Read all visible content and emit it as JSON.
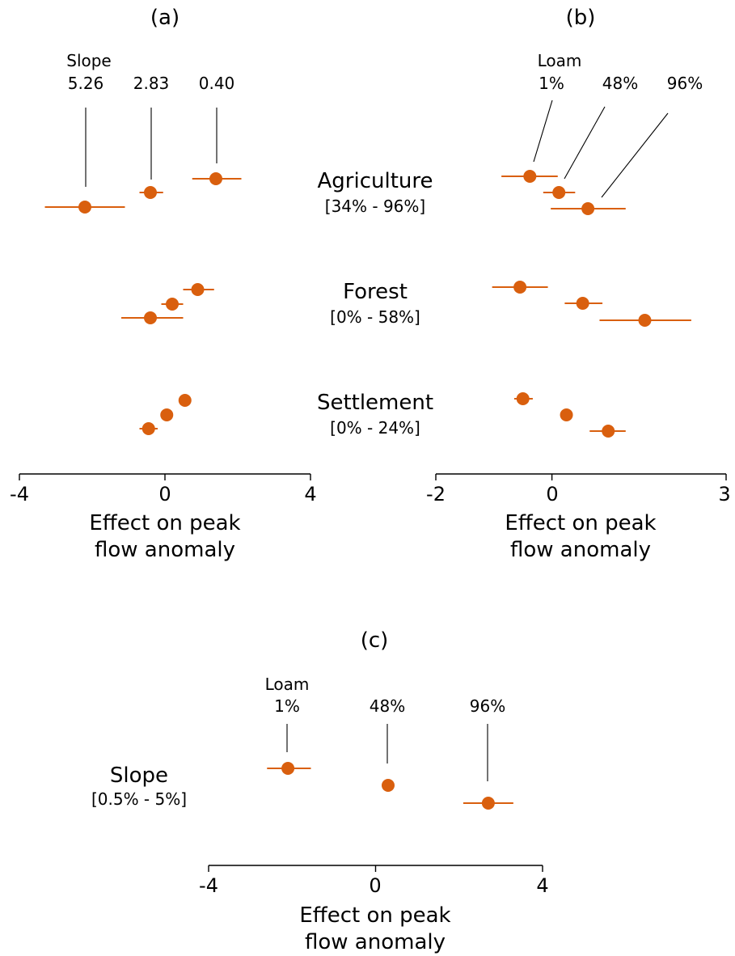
{
  "colors": {
    "marker": "#d95f0e",
    "axis": "#000000"
  },
  "categories": [
    {
      "name": "Agriculture",
      "range": "[34% - 96%]"
    },
    {
      "name": "Forest",
      "range": "[0% - 58%]"
    },
    {
      "name": "Settlement",
      "range": "[0% - 24%]"
    }
  ],
  "chart_data": [
    {
      "type": "scatter",
      "panel": "(a)",
      "xlabel": [
        "Effect on peak",
        "flow anomaly"
      ],
      "xlim": [
        -4,
        4
      ],
      "xticks": [
        "-4",
        "0",
        "4"
      ],
      "legend_title": "Slope",
      "levels": [
        "5.26",
        "2.83",
        "0.40"
      ],
      "series": [
        {
          "name": "5.26",
          "points": [
            {
              "category": "Agriculture",
              "x": -2.2,
              "lo": -3.3,
              "hi": -1.1
            },
            {
              "category": "Forest",
              "x": -0.4,
              "lo": -1.2,
              "hi": 0.5
            },
            {
              "category": "Settlement",
              "x": -0.45,
              "lo": -0.7,
              "hi": -0.2
            }
          ]
        },
        {
          "name": "2.83",
          "points": [
            {
              "category": "Agriculture",
              "x": -0.4,
              "lo": -0.7,
              "hi": -0.05
            },
            {
              "category": "Forest",
              "x": 0.2,
              "lo": -0.1,
              "hi": 0.5
            },
            {
              "category": "Settlement",
              "x": 0.05,
              "lo": -0.05,
              "hi": 0.15
            }
          ]
        },
        {
          "name": "0.40",
          "points": [
            {
              "category": "Agriculture",
              "x": 1.4,
              "lo": 0.75,
              "hi": 2.1
            },
            {
              "category": "Forest",
              "x": 0.9,
              "lo": 0.5,
              "hi": 1.35
            },
            {
              "category": "Settlement",
              "x": 0.55,
              "lo": 0.45,
              "hi": 0.65
            }
          ]
        }
      ]
    },
    {
      "type": "scatter",
      "panel": "(b)",
      "xlabel": [
        "Effect on peak",
        "flow anomaly"
      ],
      "xlim": [
        -2,
        3
      ],
      "xticks": [
        "-2",
        "0",
        "3"
      ],
      "legend_title": "Loam",
      "levels": [
        "1%",
        "48%",
        "96%"
      ],
      "series": [
        {
          "name": "1%",
          "points": [
            {
              "category": "Agriculture",
              "x": -0.38,
              "lo": -0.87,
              "hi": 0.1
            },
            {
              "category": "Forest",
              "x": -0.55,
              "lo": -1.03,
              "hi": -0.07
            },
            {
              "category": "Settlement",
              "x": -0.5,
              "lo": -0.65,
              "hi": -0.33
            }
          ]
        },
        {
          "name": "48%",
          "points": [
            {
              "category": "Agriculture",
              "x": 0.12,
              "lo": -0.15,
              "hi": 0.4
            },
            {
              "category": "Forest",
              "x": 0.53,
              "lo": 0.22,
              "hi": 0.87
            },
            {
              "category": "Settlement",
              "x": 0.25,
              "lo": 0.15,
              "hi": 0.35
            }
          ]
        },
        {
          "name": "96%",
          "points": [
            {
              "category": "Agriculture",
              "x": 0.62,
              "lo": -0.02,
              "hi": 1.27
            },
            {
              "category": "Forest",
              "x": 1.6,
              "lo": 0.82,
              "hi": 2.4
            },
            {
              "category": "Settlement",
              "x": 0.97,
              "lo": 0.65,
              "hi": 1.27
            }
          ]
        }
      ]
    },
    {
      "type": "scatter",
      "panel": "(c)",
      "xlabel": [
        "Effect on peak",
        "flow anomaly"
      ],
      "xlim": [
        -4,
        4
      ],
      "xticks": [
        "-4",
        "0",
        "4"
      ],
      "legend_title": "Loam",
      "levels": [
        "1%",
        "48%",
        "96%"
      ],
      "category": {
        "name": "Slope",
        "range": "[0.5% - 5%]"
      },
      "series": [
        {
          "name": "1%",
          "points": [
            {
              "category": "Slope",
              "x": -2.1,
              "lo": -2.6,
              "hi": -1.55
            }
          ]
        },
        {
          "name": "48%",
          "points": [
            {
              "category": "Slope",
              "x": 0.3,
              "lo": 0.2,
              "hi": 0.4
            }
          ]
        },
        {
          "name": "96%",
          "points": [
            {
              "category": "Slope",
              "x": 2.7,
              "lo": 2.1,
              "hi": 3.3
            }
          ]
        }
      ]
    }
  ]
}
